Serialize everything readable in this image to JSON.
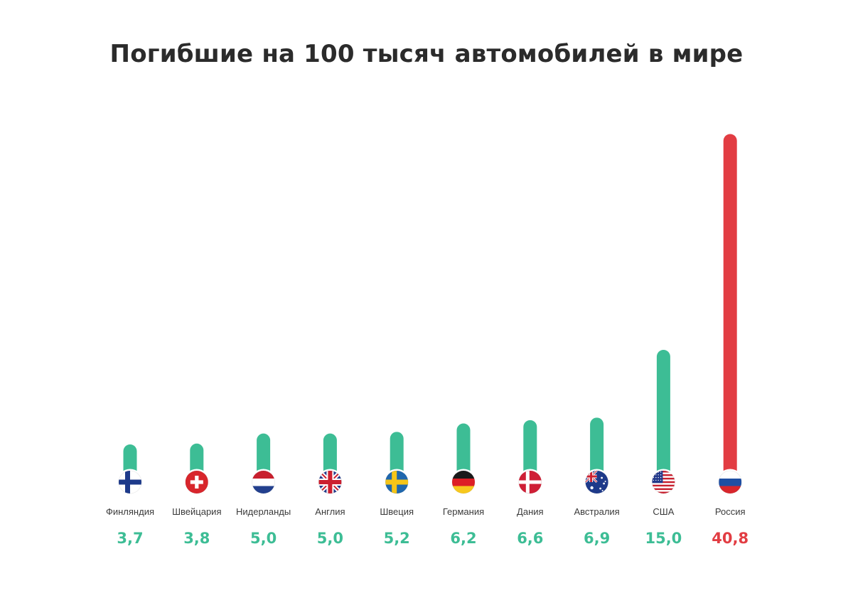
{
  "chart_data": {
    "type": "bar",
    "title": "Погибшие на 100 тысяч автомобилей в мире",
    "categories": [
      "Финляндия",
      "Швейцария",
      "Нидерланды",
      "Англия",
      "Швеция",
      "Германия",
      "Дания",
      "Австралия",
      "США",
      "Россия"
    ],
    "values": [
      3.7,
      3.8,
      5.0,
      5.0,
      5.2,
      6.2,
      6.6,
      6.9,
      15.0,
      40.8
    ],
    "value_labels": [
      "3,7",
      "3,8",
      "5,0",
      "5,0",
      "5,2",
      "6,2",
      "6,6",
      "6,9",
      "15,0",
      "40,8"
    ],
    "flags": [
      "finland-flag",
      "switzerland-flag",
      "netherlands-flag",
      "england-flag",
      "sweden-flag",
      "germany-flag",
      "denmark-flag",
      "australia-flag",
      "usa-flag",
      "russia-flag"
    ],
    "colors": {
      "default_bar": "#3dbd95",
      "highlight_bar": "#e23d43",
      "default_value": "#3dbd95",
      "highlight_value": "#e23d43"
    },
    "highlight_index": 9,
    "xlabel": "",
    "ylabel": "",
    "grid": false,
    "legend": "none"
  }
}
